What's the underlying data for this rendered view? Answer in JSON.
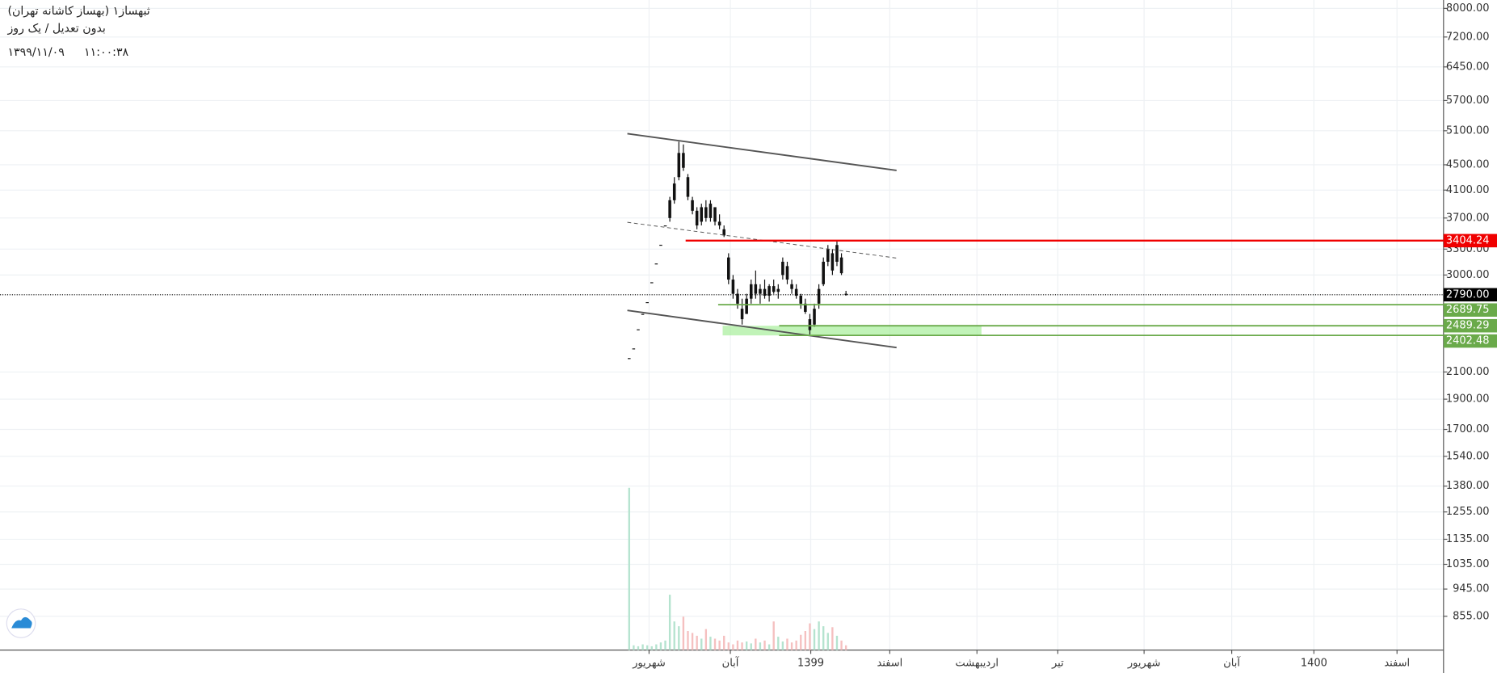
{
  "chart_data": {
    "type": "candlestick",
    "title": "ثبهساز۱ (بهساز کاشانه تهران)",
    "subtitle": "بدون تعدیل / یک روز",
    "date": "۱۳۹۹/۱۱/۰۹",
    "time": "۱۱:۰۰:۳۸",
    "x": [
      0,
      1,
      2,
      3,
      4,
      5,
      6,
      7,
      8,
      9,
      10,
      11,
      12,
      13,
      14,
      15,
      16,
      17,
      18,
      19,
      20,
      21,
      22,
      23,
      24,
      25,
      26,
      27,
      28,
      29,
      30,
      31,
      32,
      33,
      34,
      35,
      36,
      37,
      38,
      39,
      40,
      41,
      42,
      43,
      44,
      45,
      46,
      47,
      48
    ],
    "open": [
      2210,
      2290,
      2457,
      2600,
      2715,
      2921,
      3130,
      3353,
      3600,
      3700,
      3950,
      4300,
      4700,
      4300,
      3950,
      3800,
      3650,
      3850,
      3700,
      3850,
      3650,
      3550,
      3200,
      2950,
      2800,
      2650,
      2600,
      2750,
      2900,
      2800,
      2850,
      2780,
      2880,
      2820,
      3000,
      3100,
      2900,
      2850,
      2780,
      2700,
      2550,
      2500,
      2700,
      2900,
      3150,
      3250,
      3150,
      3200,
      2800
    ],
    "high": [
      2210,
      2290,
      2457,
      2600,
      2715,
      2921,
      3130,
      3353,
      3600,
      4000,
      4300,
      4900,
      4850,
      4350,
      4000,
      3850,
      3900,
      3950,
      3950,
      3850,
      3750,
      3600,
      3250,
      3000,
      2850,
      2750,
      2800,
      2950,
      3050,
      2900,
      2950,
      2900,
      2950,
      2900,
      3200,
      3150,
      2950,
      2900,
      2800,
      2750,
      2600,
      2700,
      2900,
      3200,
      3350,
      3300,
      3400,
      3250,
      2830
    ],
    "low": [
      2210,
      2290,
      2457,
      2600,
      2715,
      2921,
      3130,
      3353,
      3600,
      3650,
      3900,
      4250,
      4400,
      3950,
      3750,
      3550,
      3600,
      3650,
      3650,
      3600,
      3550,
      3450,
      2900,
      2750,
      2650,
      2500,
      2600,
      2700,
      2750,
      2700,
      2750,
      2720,
      2800,
      2750,
      2950,
      2900,
      2800,
      2750,
      2650,
      2600,
      2410,
      2480,
      2650,
      2880,
      3100,
      3000,
      3100,
      3000,
      2780
    ],
    "close": [
      2210,
      2290,
      2457,
      2600,
      2715,
      2921,
      3130,
      3353,
      3600,
      3950,
      4200,
      4700,
      4450,
      4000,
      3800,
      3600,
      3850,
      3700,
      3900,
      3650,
      3600,
      3470,
      2950,
      2800,
      2700,
      2550,
      2750,
      2900,
      2800,
      2850,
      2780,
      2880,
      2820,
      2850,
      3150,
      2950,
      2850,
      2780,
      2700,
      2620,
      2450,
      2650,
      2850,
      3150,
      3300,
      3050,
      3350,
      3020,
      2790
    ],
    "volume": [
      170,
      5,
      4,
      6,
      5,
      4,
      6,
      8,
      10,
      58,
      30,
      25,
      35,
      20,
      18,
      15,
      12,
      22,
      14,
      12,
      10,
      15,
      8,
      6,
      10,
      8,
      9,
      7,
      12,
      8,
      10,
      6,
      30,
      14,
      9,
      12,
      8,
      10,
      16,
      20,
      28,
      22,
      30,
      25,
      18,
      24,
      15,
      10,
      5
    ],
    "candle_color": "#111111",
    "volume_up_color": "#b5e3cf",
    "volume_down_color": "#f5c0c0",
    "xlim": [
      -139.3,
      180.3
    ],
    "xticks": [
      {
        "value": 4.4,
        "label": "شهریور"
      },
      {
        "value": 22.4,
        "label": "آبان"
      },
      {
        "value": 40.2,
        "label": "1399"
      },
      {
        "value": 57.7,
        "label": "اسفند"
      },
      {
        "value": 77,
        "label": "اردیبهشت"
      },
      {
        "value": 94.9,
        "label": "تیر"
      },
      {
        "value": 114,
        "label": "شهریور"
      },
      {
        "value": 133.4,
        "label": "آبان"
      },
      {
        "value": 151.6,
        "label": "1400"
      },
      {
        "value": 170,
        "label": "اسفند"
      }
    ],
    "ylim": [
      755,
      8250
    ],
    "log_y": true,
    "grid": true,
    "yticks": [
      {
        "value": 8000,
        "label": "8000.00"
      },
      {
        "value": 7200,
        "label": "7200.00"
      },
      {
        "value": 6450,
        "label": "6450.00"
      },
      {
        "value": 5700,
        "label": "5700.00"
      },
      {
        "value": 5100,
        "label": "5100.00"
      },
      {
        "value": 4500,
        "label": "4500.00"
      },
      {
        "value": 4100,
        "label": "4100.00"
      },
      {
        "value": 3700,
        "label": "3700.00"
      },
      {
        "value": 3300,
        "label": "3300.00"
      },
      {
        "value": 3000,
        "label": "3000.00"
      },
      {
        "value": 2100,
        "label": "2100.00"
      },
      {
        "value": 1900,
        "label": "1900.00"
      },
      {
        "value": 1700,
        "label": "1700.00"
      },
      {
        "value": 1540,
        "label": "1540.00"
      },
      {
        "value": 1380,
        "label": "1380.00"
      },
      {
        "value": 1255,
        "label": "1255.00"
      },
      {
        "value": 1135,
        "label": "1135.00"
      },
      {
        "value": 1035,
        "label": "1035.00"
      },
      {
        "value": 945,
        "label": "945.00"
      },
      {
        "value": 855,
        "label": "855.00"
      }
    ],
    "last_price": {
      "value": 2790,
      "label": "2790.00",
      "color": "#000000"
    },
    "levels": [
      {
        "price": 3404.24,
        "color": "#f00000",
        "x_start": 12.5
      },
      {
        "price": 2689.75,
        "color": "#6aaa4a",
        "x_start": 19.7
      },
      {
        "price": 2489.29,
        "color": "#6aaa4a",
        "x_start": 33.2
      },
      {
        "price": 2402.48,
        "color": "#6aaa4a",
        "x_start": 33.2
      }
    ],
    "zone": {
      "x": [
        20.7,
        78
      ],
      "y": [
        2402.48,
        2489.29
      ],
      "color": "#a6ee9a"
    },
    "trendlines": [
      {
        "x": [
          -0.4,
          59.2
        ],
        "y": [
          5046,
          4408
        ],
        "style": "solid"
      },
      {
        "x": [
          -0.4,
          59.2
        ],
        "y": [
          2634,
          2297
        ],
        "style": "solid"
      },
      {
        "x": [
          -0.4,
          59.2
        ],
        "y": [
          3642,
          3193
        ],
        "style": "dashed"
      }
    ]
  }
}
